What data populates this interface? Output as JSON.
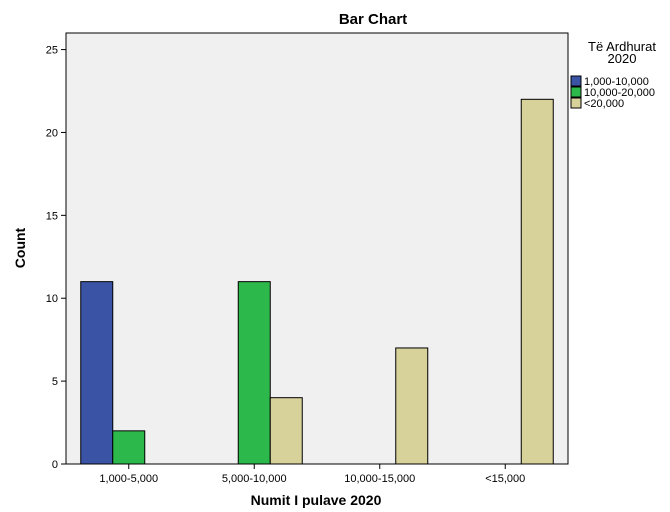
{
  "chart_data": {
    "type": "bar",
    "title": "Bar Chart",
    "xlabel": "Numit I pulave 2020",
    "ylabel": "Count",
    "categories": [
      "1,000-5,000",
      "5,000-10,000",
      "10,000-15,000",
      "<15,000"
    ],
    "ylim": [
      0,
      26
    ],
    "yticks": [
      0,
      5,
      10,
      15,
      20,
      25
    ],
    "legend": {
      "title_lines": [
        "Të Ardhurat",
        "2020"
      ],
      "placement": "right"
    },
    "series": [
      {
        "name": "1,000-10,000",
        "color": "#3a53a4",
        "values": [
          11,
          null,
          null,
          null
        ]
      },
      {
        "name": "10,000-20,000",
        "color": "#2db84b",
        "values": [
          2,
          11,
          null,
          null
        ]
      },
      {
        "name": "<20,000",
        "color": "#d7d19a",
        "values": [
          null,
          4,
          7,
          22
        ]
      }
    ],
    "plot_background": "#f0f0f0",
    "grid": false
  }
}
